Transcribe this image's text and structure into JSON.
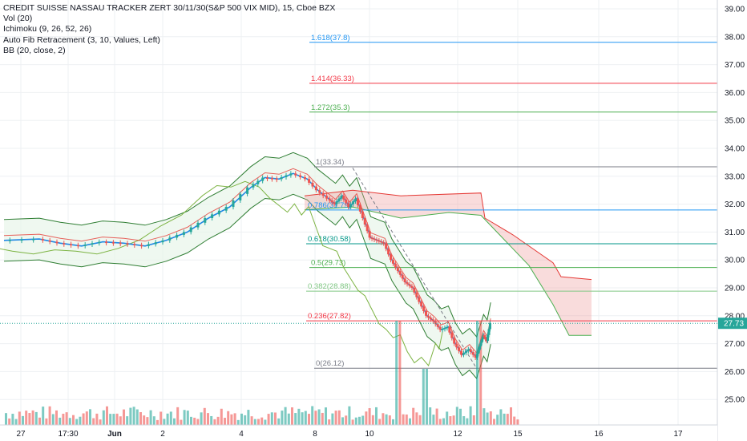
{
  "legend": {
    "title": "CREDIT SUISSE NASSAU TRACKER ZERT 30/11/30(S&P 500 VIX MID), 15, Cboe BZX",
    "lines": [
      "Vol (20)",
      "Ichimoku (9, 26, 52, 26)",
      "Auto Fib Retracement (3, 10, Values, Left)",
      "BB (20, close, 2)"
    ]
  },
  "colors": {
    "up": "#26a69a",
    "down": "#ef5350",
    "bb": "#2e7d32",
    "bb_fill": "#e8f5e9",
    "ich_base": "#e53935",
    "ich_lag": "#7cb342",
    "conv": "#1e88e5",
    "last_price_label": "#26a69a",
    "grid": "#eef0f3"
  },
  "chart_data": {
    "type": "candlestick",
    "symbol": "CREDIT SUISSE NASSAU TRACKER ZERT 30/11/30(S&P 500 VIX MID)",
    "interval": "15",
    "exchange": "Cboe BZX",
    "ylim": [
      24.8,
      39.2
    ],
    "y_ticks": [
      "39.00",
      "38.00",
      "37.00",
      "36.00",
      "35.00",
      "34.00",
      "33.00",
      "32.00",
      "31.00",
      "30.00",
      "29.00",
      "28.00",
      "27.00",
      "26.00",
      "25.00"
    ],
    "x_ticks": [
      "27",
      "17:30",
      "Jun",
      "2",
      "4",
      "8",
      "10",
      "12",
      "15",
      "16",
      "17"
    ],
    "last_price": "27.73",
    "fib_levels": [
      {
        "label": "1.618",
        "value": "37.8",
        "color": "#2196f3"
      },
      {
        "label": "1.414",
        "value": "36.33",
        "color": "#f23645"
      },
      {
        "label": "1.272",
        "value": "35.3",
        "color": "#4caf50"
      },
      {
        "label": "1",
        "value": "33.34",
        "color": "#787b86"
      },
      {
        "label": "0.786",
        "value": "31.79",
        "color": "#2196f3"
      },
      {
        "label": "0.618",
        "value": "30.58",
        "color": "#009688"
      },
      {
        "label": "0.5",
        "value": "29.73",
        "color": "#4caf50"
      },
      {
        "label": "0.382",
        "value": "28.88",
        "color": "#81c784"
      },
      {
        "label": "0.236",
        "value": "27.82",
        "color": "#f23645"
      },
      {
        "label": "0",
        "value": "26.12",
        "color": "#787b86"
      }
    ],
    "series": [
      {
        "x": [
          0,
          0.05,
          0.08,
          0.11,
          0.14,
          0.17,
          0.2,
          0.23,
          0.26,
          0.29,
          0.32,
          0.35,
          0.37,
          0.39,
          0.41,
          0.43,
          0.445,
          0.46,
          0.47,
          0.48,
          0.49,
          0.5,
          0.51,
          0.52,
          0.53,
          0.54,
          0.55,
          0.56,
          0.57,
          0.58,
          0.59,
          0.6,
          0.61,
          0.62,
          0.63,
          0.64,
          0.65,
          0.66,
          0.67,
          0.675,
          0.68,
          0.685,
          0.69
        ],
        "values": [
          30.7,
          30.75,
          30.6,
          30.5,
          30.65,
          30.6,
          30.5,
          30.7,
          31.0,
          31.5,
          31.9,
          32.6,
          32.95,
          32.9,
          33.1,
          32.9,
          32.5,
          32.2,
          32.0,
          32.3,
          31.9,
          32.2,
          31.5,
          30.8,
          30.7,
          30.6,
          30.0,
          29.6,
          29.2,
          29.0,
          28.5,
          28.0,
          27.8,
          27.5,
          27.6,
          27.0,
          26.6,
          26.8,
          26.5,
          26.9,
          27.3,
          27.1,
          27.73
        ]
      }
    ]
  }
}
